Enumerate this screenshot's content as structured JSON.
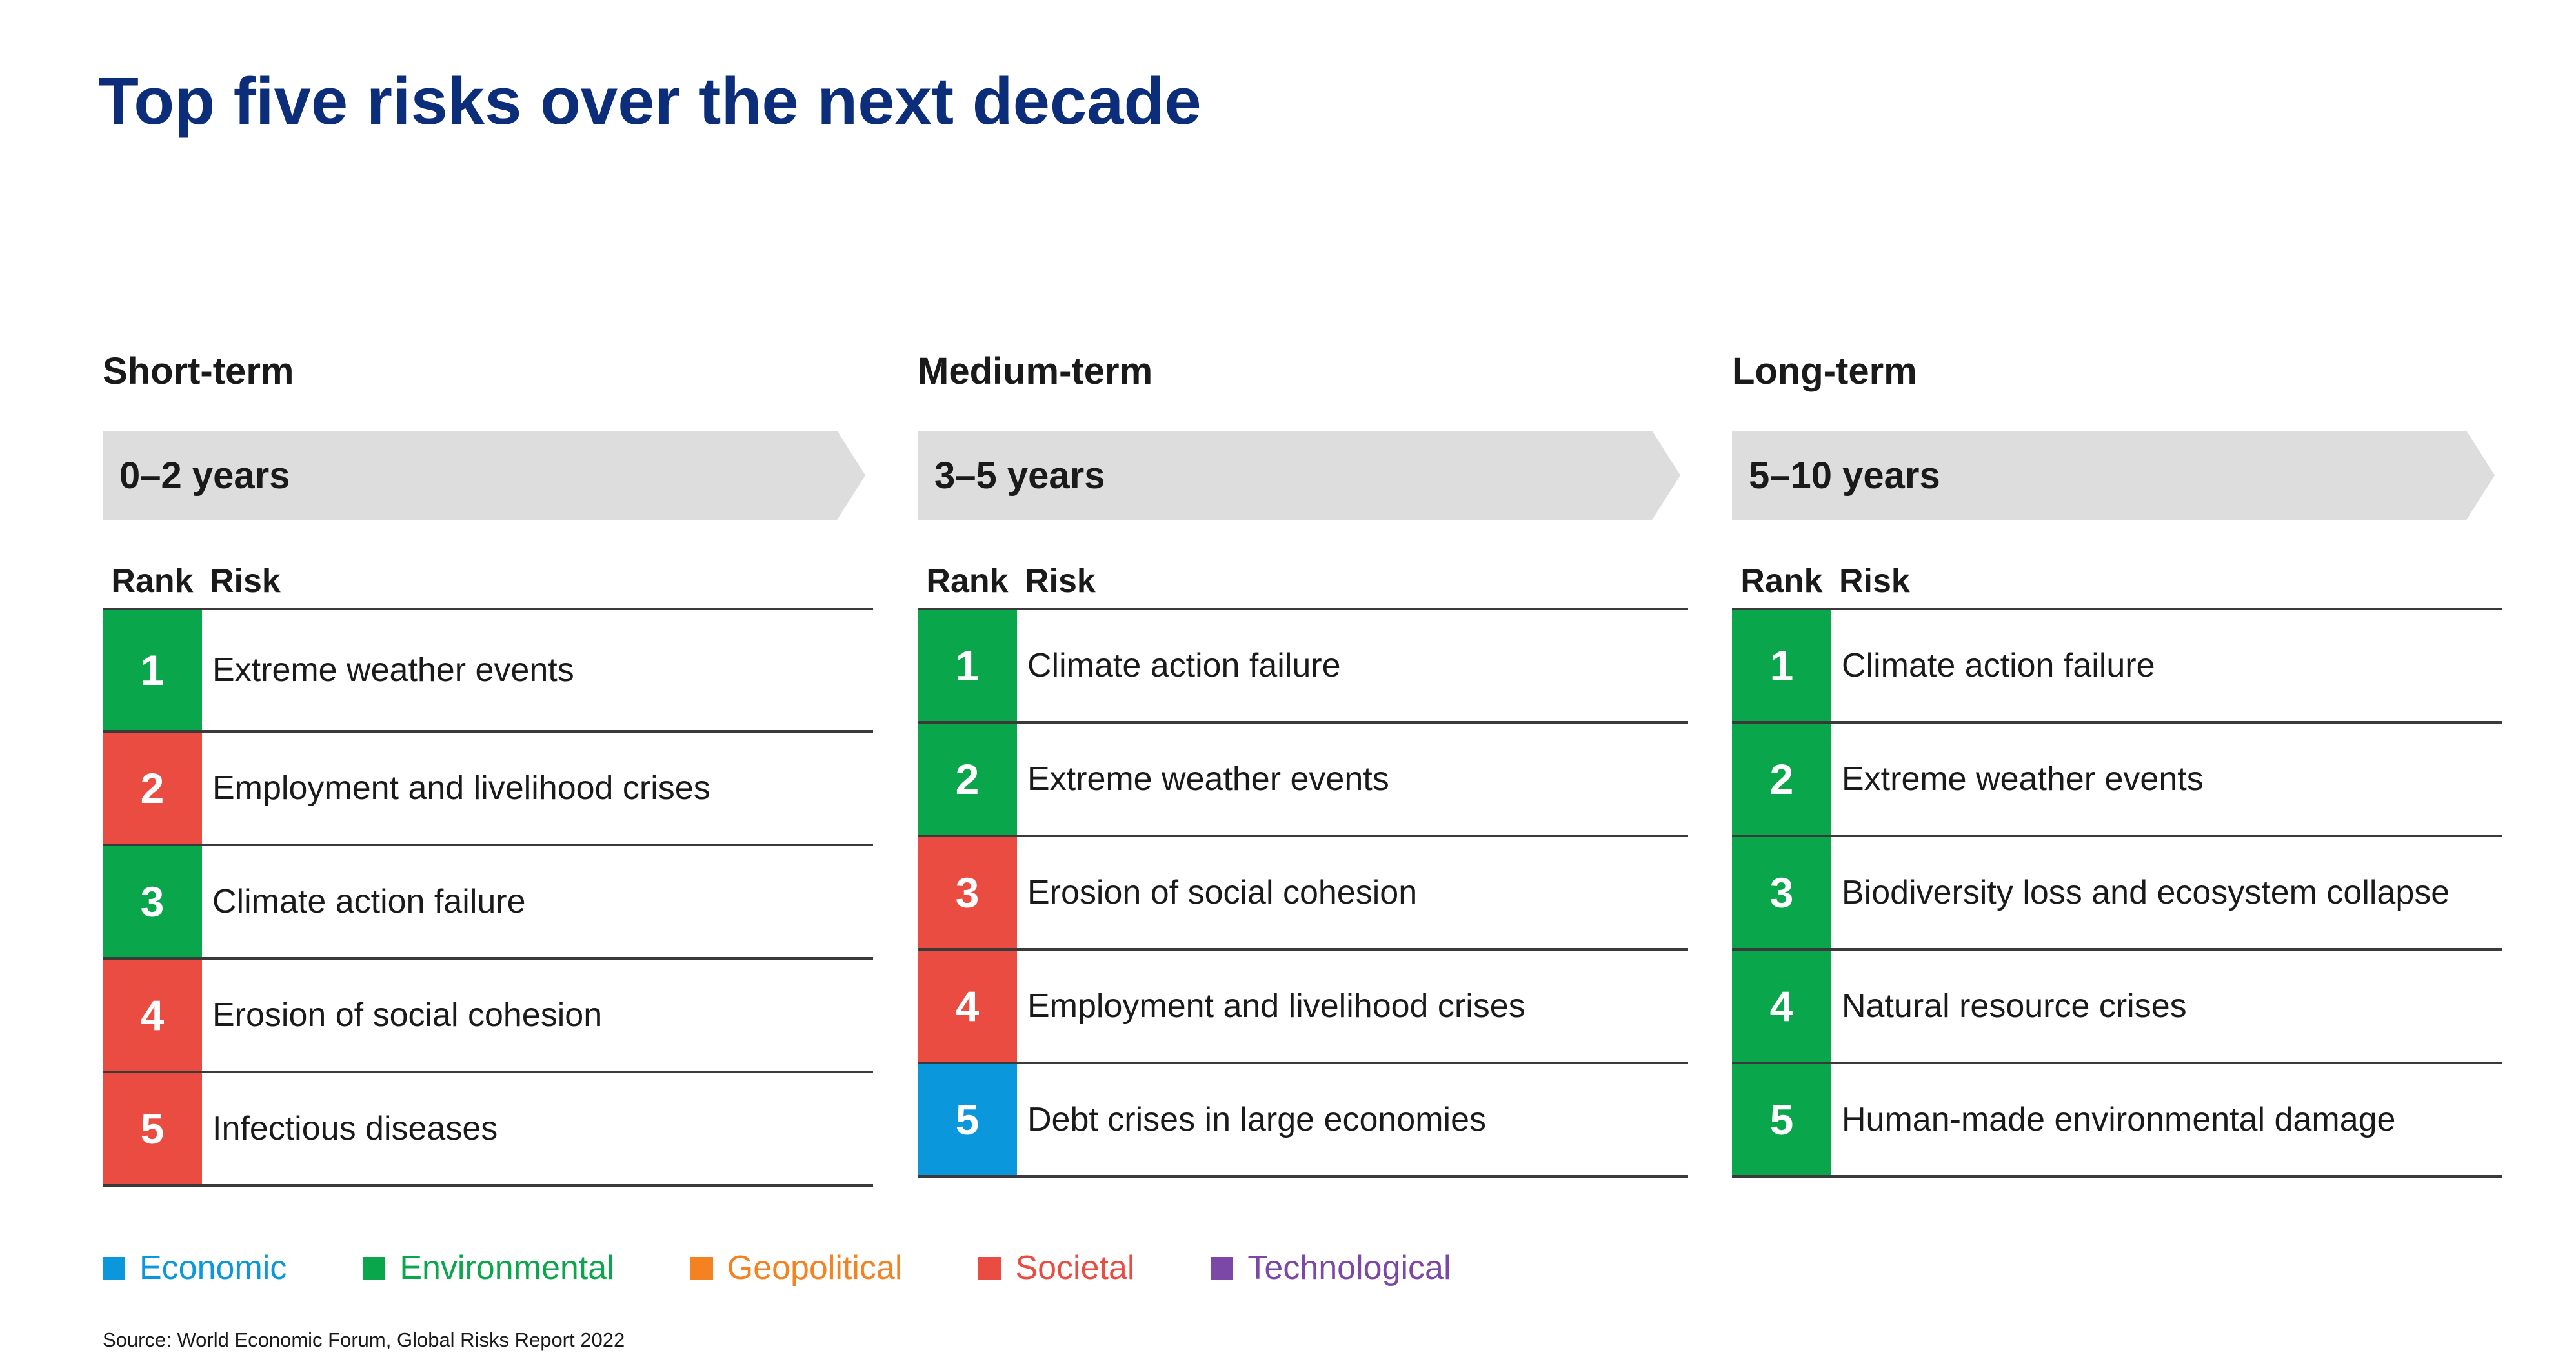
{
  "title": "Top five risks over the next decade",
  "colors": {
    "title": "#0b2d7a",
    "economic": "#0a97dc",
    "environmental": "#0aa64b",
    "geopolitical": "#f58220",
    "societal": "#eb4c42",
    "technological": "#7c48a8",
    "banner": "#dddddd"
  },
  "table_header": {
    "rank": "Rank",
    "risk": "Risk"
  },
  "columns": [
    {
      "term": "Short-term",
      "years": "0–2 years",
      "risks": [
        {
          "rank": "1",
          "risk": "Extreme weather events",
          "category": "environmental"
        },
        {
          "rank": "2",
          "risk": "Employment and livelihood crises",
          "category": "societal"
        },
        {
          "rank": "3",
          "risk": "Climate action failure",
          "category": "environmental"
        },
        {
          "rank": "4",
          "risk": "Erosion of social cohesion",
          "category": "societal"
        },
        {
          "rank": "5",
          "risk": "Infectious diseases",
          "category": "societal"
        }
      ]
    },
    {
      "term": "Medium-term",
      "years": "3–5 years",
      "risks": [
        {
          "rank": "1",
          "risk": "Climate action failure",
          "category": "environmental"
        },
        {
          "rank": "2",
          "risk": "Extreme weather events",
          "category": "environmental"
        },
        {
          "rank": "3",
          "risk": "Erosion of social cohesion",
          "category": "societal"
        },
        {
          "rank": "4",
          "risk": "Employment and livelihood crises",
          "category": "societal"
        },
        {
          "rank": "5",
          "risk": "Debt crises in large economies",
          "category": "economic"
        }
      ]
    },
    {
      "term": "Long-term",
      "years": "5–10 years",
      "risks": [
        {
          "rank": "1",
          "risk": "Climate action failure",
          "category": "environmental"
        },
        {
          "rank": "2",
          "risk": "Extreme weather events",
          "category": "environmental"
        },
        {
          "rank": "3",
          "risk": "Biodiversity loss and ecosystem collapse",
          "category": "environmental"
        },
        {
          "rank": "4",
          "risk": "Natural resource crises",
          "category": "environmental"
        },
        {
          "rank": "5",
          "risk": "Human-made environmental damage",
          "category": "environmental"
        }
      ]
    }
  ],
  "legend": [
    {
      "label": "Economic",
      "category": "economic"
    },
    {
      "label": "Environmental",
      "category": "environmental"
    },
    {
      "label": "Geopolitical",
      "category": "geopolitical"
    },
    {
      "label": "Societal",
      "category": "societal"
    },
    {
      "label": "Technological",
      "category": "technological"
    }
  ],
  "source": "Source: World Economic Forum, Global Risks Report 2022"
}
